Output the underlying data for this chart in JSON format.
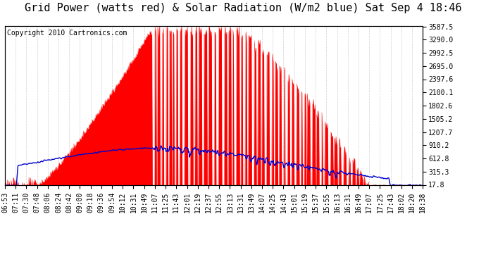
{
  "title": "Grid Power (watts red) & Solar Radiation (W/m2 blue) Sat Sep 4 18:46",
  "copyright": "Copyright 2010 Cartronics.com",
  "y_ticks": [
    17.8,
    315.3,
    612.8,
    910.2,
    1207.7,
    1505.2,
    1802.6,
    2100.1,
    2397.6,
    2695.0,
    2992.5,
    3290.0,
    3587.5
  ],
  "y_max": 3587.5,
  "y_min": 17.8,
  "x_labels": [
    "06:53",
    "07:11",
    "07:30",
    "07:48",
    "08:06",
    "08:24",
    "08:42",
    "09:00",
    "09:18",
    "09:36",
    "09:54",
    "10:12",
    "10:31",
    "10:49",
    "11:07",
    "11:25",
    "11:43",
    "12:01",
    "12:19",
    "12:37",
    "12:55",
    "13:13",
    "13:31",
    "13:49",
    "14:07",
    "14:25",
    "14:43",
    "15:01",
    "15:19",
    "15:37",
    "15:55",
    "16:13",
    "16:31",
    "16:49",
    "17:07",
    "17:25",
    "17:43",
    "18:02",
    "18:20",
    "18:38"
  ],
  "bg_color": "#ffffff",
  "plot_bg_color": "#ffffff",
  "grid_color": "#bbbbbb",
  "red_color": "#ff0000",
  "blue_color": "#0000cc",
  "title_fontsize": 11,
  "tick_fontsize": 7,
  "copyright_fontsize": 7
}
